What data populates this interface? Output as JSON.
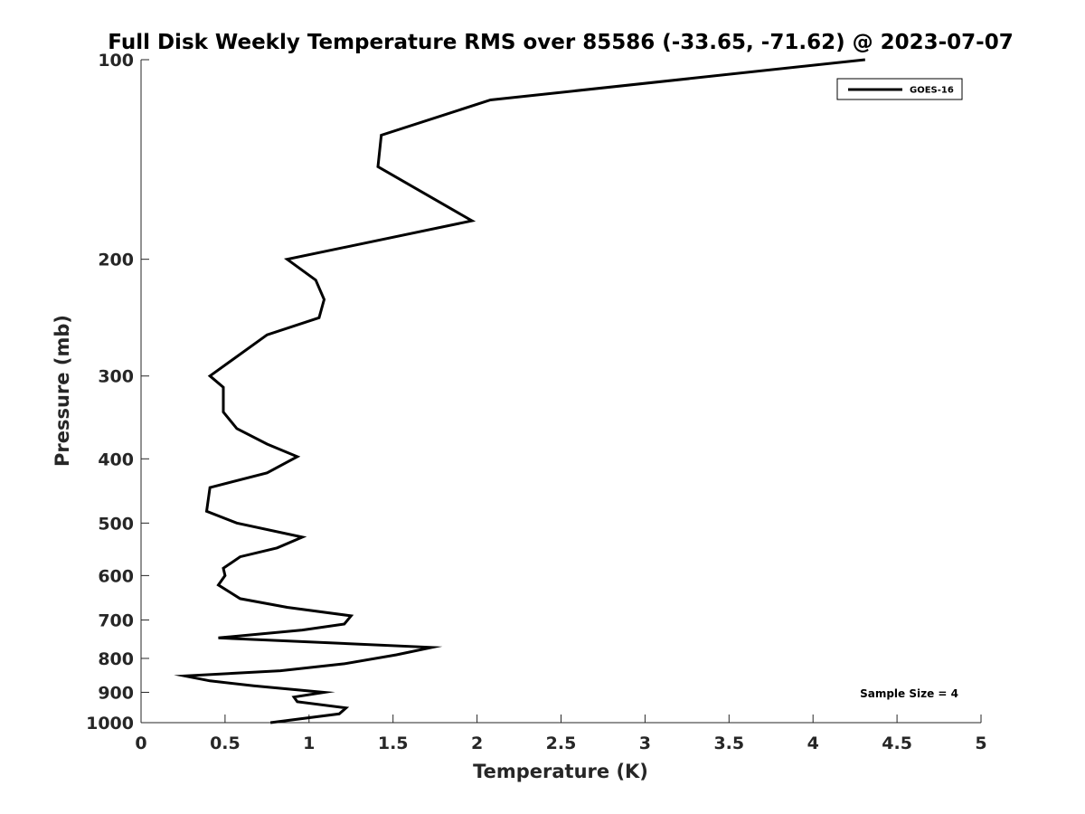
{
  "chart_data": {
    "type": "line",
    "title": "Full Disk Weekly Temperature RMS over 85586 (-33.65, -71.62) @ 2023-07-07",
    "xlabel": "Temperature (K)",
    "ylabel": "Pressure (mb)",
    "xlim": [
      0,
      5
    ],
    "ylim": [
      100,
      1000
    ],
    "y_scale": "log",
    "y_reversed": true,
    "grid": false,
    "legend_position": "top-right",
    "x_ticks": [
      0,
      0.5,
      1,
      1.5,
      2,
      2.5,
      3,
      3.5,
      4,
      4.5,
      5
    ],
    "x_tick_labels": [
      "0",
      "0.5",
      "1",
      "1.5",
      "2",
      "2.5",
      "3",
      "3.5",
      "4",
      "4.5",
      "5"
    ],
    "y_ticks": [
      100,
      200,
      300,
      400,
      500,
      600,
      700,
      800,
      900,
      1000
    ],
    "y_tick_labels": [
      "100",
      "200",
      "300",
      "400",
      "500",
      "600",
      "700",
      "800",
      "900",
      "1000"
    ],
    "series": [
      {
        "name": "GOES-16",
        "color": "#000000",
        "x": [
          4.31,
          2.08,
          1.43,
          1.41,
          1.97,
          0.87,
          1.04,
          1.09,
          1.06,
          0.75,
          0.41,
          0.49,
          0.49,
          0.57,
          0.75,
          0.93,
          0.75,
          0.41,
          0.39,
          0.57,
          0.96,
          0.81,
          0.59,
          0.49,
          0.5,
          0.46,
          0.59,
          0.87,
          1.25,
          1.21,
          0.96,
          0.46,
          1.73,
          1.52,
          1.21,
          0.83,
          0.26,
          0.41,
          0.67,
          1.09,
          0.91,
          0.93,
          1.22,
          1.18,
          0.77
        ],
        "y": [
          100,
          115,
          130,
          145,
          175,
          200,
          215,
          230,
          245,
          260,
          300,
          312,
          340,
          360,
          380,
          397,
          420,
          442,
          480,
          500,
          525,
          545,
          562,
          585,
          600,
          620,
          650,
          670,
          690,
          710,
          725,
          745,
          770,
          790,
          815,
          835,
          850,
          865,
          880,
          900,
          915,
          930,
          950,
          970,
          1000
        ]
      }
    ],
    "annotations": [
      {
        "text": "Sample Size = 4",
        "position": "bottom-right"
      }
    ]
  }
}
